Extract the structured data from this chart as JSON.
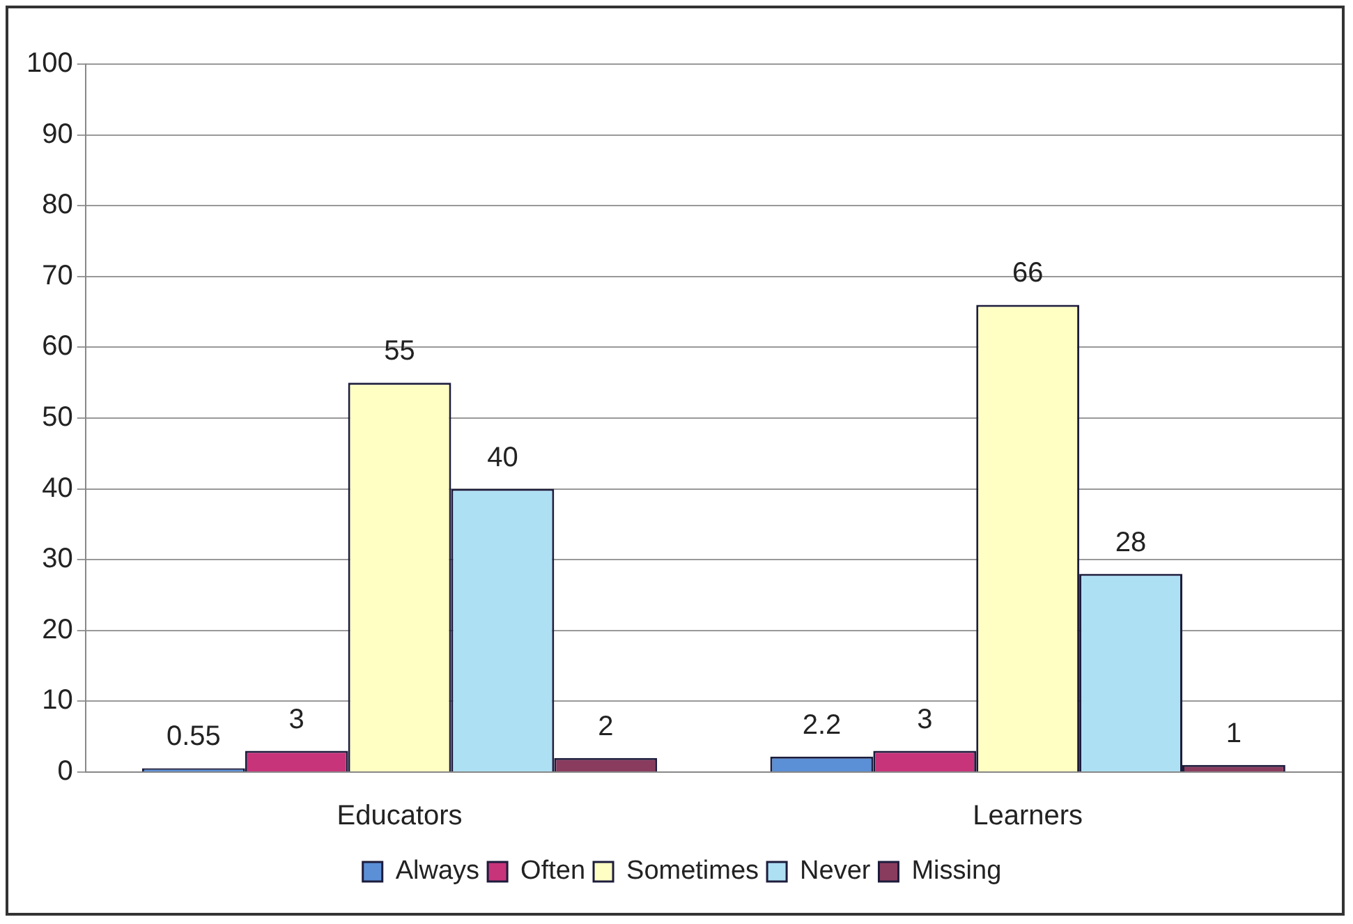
{
  "chart_data": {
    "type": "bar",
    "categories": [
      "Educators",
      "Learners"
    ],
    "series": [
      {
        "name": "Always",
        "color": "#5b8fd6",
        "values": [
          0.55,
          2.2
        ]
      },
      {
        "name": "Often",
        "color": "#c8347a",
        "values": [
          3,
          3
        ]
      },
      {
        "name": "Sometimes",
        "color": "#ffffc4",
        "values": [
          55,
          66
        ]
      },
      {
        "name": "Never",
        "color": "#aee0f4",
        "values": [
          40,
          28
        ]
      },
      {
        "name": "Missing",
        "color": "#8a3c5e",
        "values": [
          2,
          1
        ]
      }
    ],
    "ylim": [
      0,
      100
    ],
    "yticks": [
      0,
      10,
      20,
      30,
      40,
      50,
      60,
      70,
      80,
      90,
      100
    ],
    "grid": "y",
    "legend": "bottom",
    "data_labels": true
  }
}
